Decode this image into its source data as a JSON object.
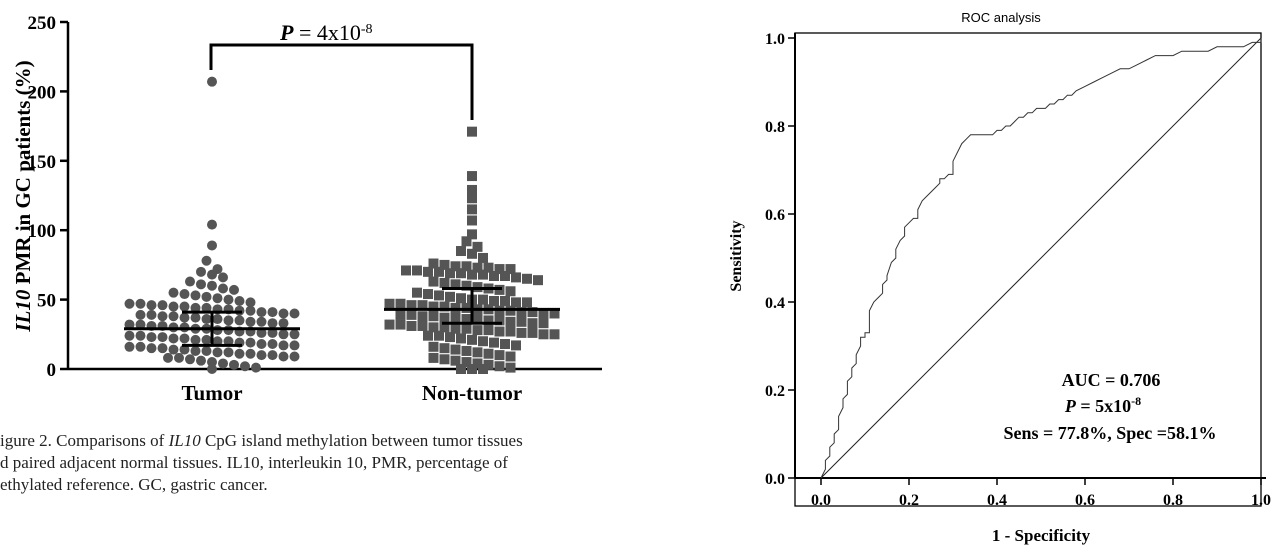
{
  "chart_data": [
    {
      "type": "scatter",
      "title": "",
      "ylabel_italic": "IL10",
      "ylabel_rest": " PMR in GC patients (%)",
      "ylim": [
        0,
        250
      ],
      "yticks": [
        "0",
        "50",
        "100",
        "150",
        "200",
        "250"
      ],
      "yticks_values": [
        0,
        50,
        100,
        150,
        200,
        250
      ],
      "categories": [
        "Tumor",
        "Non-tumor"
      ],
      "annotation": {
        "p_label": "P",
        "p_text": " = 4x10",
        "p_exp": "-8"
      },
      "series": [
        {
          "marker": "circle",
          "color": "#555555",
          "mean": 29,
          "error_low": 17,
          "error_high": 41,
          "values": [
            207,
            104,
            89,
            78,
            72,
            70,
            68,
            66,
            63,
            61,
            60,
            58,
            57,
            55,
            54,
            53,
            52,
            51,
            50,
            49,
            48,
            47,
            47,
            46,
            46,
            45,
            45,
            44,
            44,
            43,
            43,
            42,
            42,
            41,
            41,
            40,
            40,
            39,
            39,
            38,
            38,
            37,
            37,
            36,
            36,
            35,
            35,
            34,
            34,
            33,
            33,
            32,
            32,
            31,
            31,
            30,
            30,
            29,
            29,
            28,
            28,
            27,
            27,
            26,
            26,
            25,
            25,
            24,
            24,
            23,
            23,
            22,
            22,
            21,
            21,
            20,
            20,
            19,
            19,
            18,
            18,
            17,
            17,
            16,
            16,
            15,
            15,
            14,
            14,
            13,
            13,
            12,
            12,
            11,
            11,
            10,
            10,
            9,
            9,
            8,
            8,
            7,
            6,
            5,
            4,
            3,
            2,
            1,
            0
          ]
        },
        {
          "marker": "square",
          "color": "#555555",
          "mean": 43,
          "error_low": 33,
          "error_high": 58,
          "values": [
            171,
            139,
            129,
            123,
            115,
            107,
            97,
            92,
            88,
            85,
            83,
            80,
            76,
            75,
            74,
            74,
            73,
            73,
            72,
            72,
            71,
            71,
            70,
            70,
            69,
            69,
            68,
            68,
            67,
            67,
            66,
            65,
            64,
            63,
            62,
            61,
            60,
            59,
            58,
            57,
            56,
            55,
            54,
            53,
            52,
            51,
            50,
            50,
            49,
            49,
            48,
            48,
            47,
            47,
            46,
            46,
            45,
            45,
            44,
            44,
            43,
            43,
            42,
            42,
            41,
            41,
            40,
            40,
            39,
            39,
            38,
            38,
            37,
            37,
            36,
            36,
            35,
            35,
            34,
            34,
            33,
            33,
            32,
            32,
            31,
            31,
            30,
            30,
            29,
            29,
            28,
            28,
            27,
            27,
            26,
            26,
            25,
            25,
            24,
            24,
            23,
            22,
            21,
            20,
            19,
            18,
            17,
            16,
            15,
            14,
            13,
            12,
            11,
            10,
            9,
            8,
            7,
            6,
            5,
            4,
            3,
            2,
            1,
            0,
            0,
            0
          ]
        }
      ]
    },
    {
      "type": "line",
      "title": "ROC  analysis",
      "xlabel": "1 - Specificity",
      "ylabel": "Sensitivity",
      "xlim": [
        0,
        1
      ],
      "ylim": [
        0,
        1
      ],
      "xticks": [
        "0.0",
        "0.2",
        "0.4",
        "0.6",
        "0.8",
        "1.0"
      ],
      "yticks": [
        "0.0",
        "0.2",
        "0.4",
        "0.6",
        "0.8",
        "1.0"
      ],
      "ticks_values": [
        0,
        0.2,
        0.4,
        0.6,
        0.8,
        1.0
      ],
      "series": [
        {
          "x": [
            0,
            0.01,
            0.01,
            0.02,
            0.02,
            0.03,
            0.03,
            0.04,
            0.04,
            0.05,
            0.05,
            0.06,
            0.06,
            0.07,
            0.07,
            0.08,
            0.08,
            0.09,
            0.09,
            0.1,
            0.1,
            0.11,
            0.11,
            0.12,
            0.12,
            0.13,
            0.13,
            0.14,
            0.14,
            0.15,
            0.15,
            0.16,
            0.17,
            0.17,
            0.18,
            0.19,
            0.19,
            0.2,
            0.2,
            0.21,
            0.22,
            0.22,
            0.23,
            0.24,
            0.24,
            0.25,
            0.26,
            0.27,
            0.27,
            0.28,
            0.29,
            0.3,
            0.3,
            0.31,
            0.32,
            0.33,
            0.34,
            0.35,
            0.35,
            0.36,
            0.37,
            0.38,
            0.39,
            0.4,
            0.41,
            0.42,
            0.43,
            0.44,
            0.45,
            0.46,
            0.47,
            0.48,
            0.49,
            0.5,
            0.51,
            0.52,
            0.53,
            0.54,
            0.55,
            0.56,
            0.57,
            0.58,
            0.6,
            0.62,
            0.64,
            0.66,
            0.68,
            0.7,
            0.72,
            0.74,
            0.76,
            0.78,
            0.8,
            0.82,
            0.84,
            0.86,
            0.88,
            0.9,
            0.92,
            0.94,
            0.96,
            0.98,
            1.0,
            1.0
          ],
          "y": [
            0,
            0.02,
            0.04,
            0.05,
            0.07,
            0.08,
            0.1,
            0.11,
            0.14,
            0.16,
            0.18,
            0.19,
            0.22,
            0.23,
            0.25,
            0.26,
            0.28,
            0.3,
            0.32,
            0.32,
            0.33,
            0.33,
            0.38,
            0.4,
            0.4,
            0.41,
            0.41,
            0.42,
            0.44,
            0.45,
            0.46,
            0.49,
            0.5,
            0.52,
            0.54,
            0.55,
            0.57,
            0.58,
            0.58,
            0.59,
            0.59,
            0.61,
            0.63,
            0.64,
            0.64,
            0.65,
            0.66,
            0.67,
            0.68,
            0.68,
            0.69,
            0.69,
            0.72,
            0.74,
            0.76,
            0.77,
            0.78,
            0.78,
            0.78,
            0.78,
            0.78,
            0.78,
            0.78,
            0.79,
            0.79,
            0.8,
            0.8,
            0.81,
            0.82,
            0.82,
            0.83,
            0.83,
            0.84,
            0.84,
            0.84,
            0.85,
            0.85,
            0.86,
            0.86,
            0.87,
            0.87,
            0.88,
            0.89,
            0.9,
            0.91,
            0.92,
            0.93,
            0.93,
            0.94,
            0.95,
            0.96,
            0.96,
            0.96,
            0.97,
            0.97,
            0.97,
            0.97,
            0.98,
            0.98,
            0.98,
            0.98,
            0.99,
            0.99,
            1.0
          ]
        }
      ],
      "reference_line": {
        "x": [
          0,
          1
        ],
        "y": [
          0,
          1
        ]
      },
      "annotations": {
        "auc": "AUC = 0.706",
        "p_label": "P",
        "p_text": " = 5x10",
        "p_exp": "-8",
        "sens_spec": "Sens = 77.8%, Spec =58.1%"
      }
    }
  ],
  "caption": {
    "part1": "igure 2. Comparisons of ",
    "part1_italic": "IL10",
    "part1_rest": " CpG island methylation between tumor tissues",
    "line2": "d paired adjacent normal tissues. IL10, interleukin 10, PMR, percentage of",
    "line3": "ethylated reference. GC, gastric cancer."
  }
}
